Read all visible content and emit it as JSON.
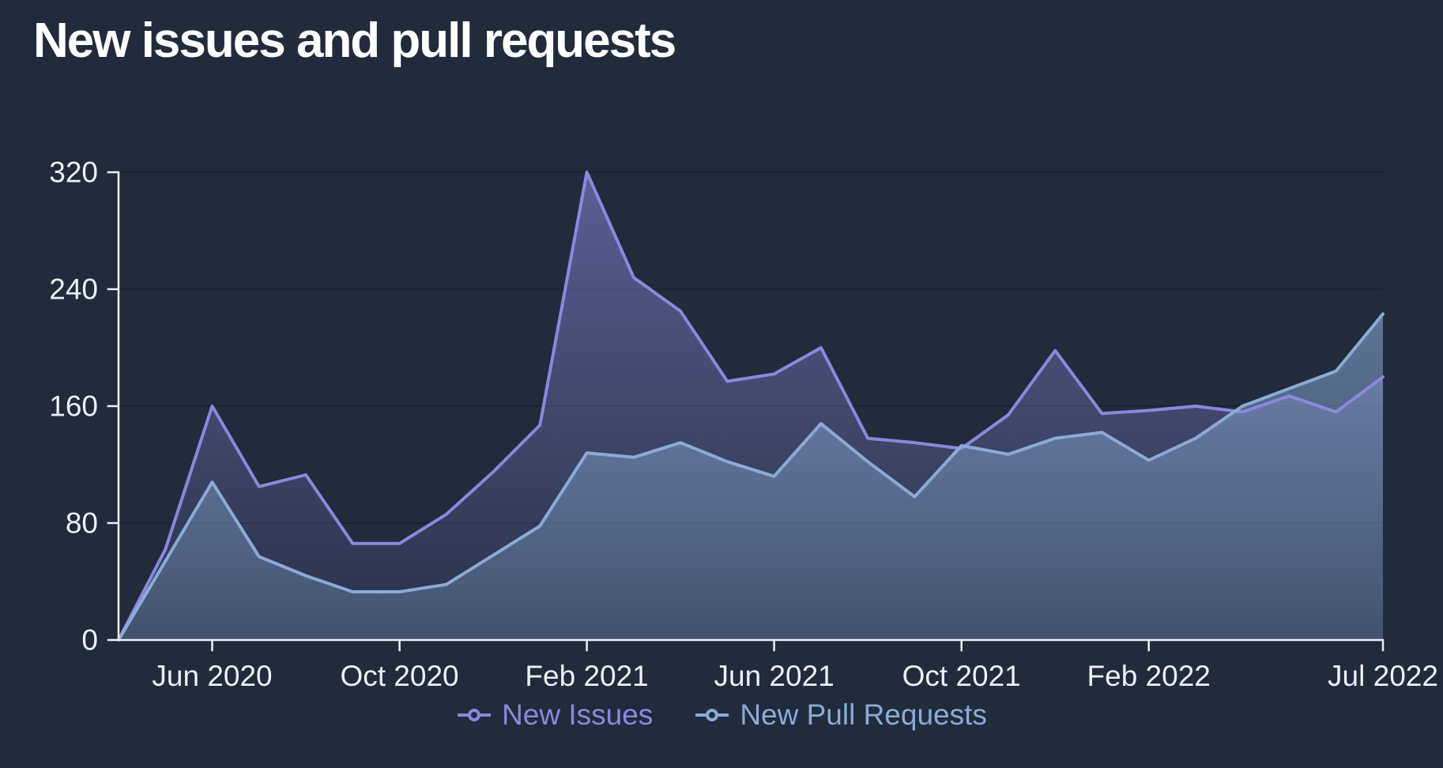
{
  "page": {
    "title": "New issues and pull requests",
    "background": "#212b3b"
  },
  "colors": {
    "background": "#212b3b",
    "axis": "#edf0f6",
    "tick_label": "#edf0f6",
    "gridline": "#1a2231",
    "new_issues": "#8c87dd",
    "new_pull_requests": "#8aabd8"
  },
  "legend": {
    "items": [
      {
        "label": "New Issues",
        "color": "#8c87dd",
        "marker": "line-circle-icon"
      },
      {
        "label": "New Pull Requests",
        "color": "#8aabd8",
        "marker": "line-circle-icon"
      }
    ]
  },
  "chart_data": {
    "type": "area",
    "title": "New issues and pull requests",
    "xlabel": "",
    "ylabel": "",
    "ylim": [
      0,
      320
    ],
    "y_ticks": [
      0,
      80,
      160,
      240,
      320
    ],
    "grid": "horizontal",
    "legend_position": "bottom",
    "categories": [
      "Apr 2020",
      "May 2020",
      "Jun 2020",
      "Jul 2020",
      "Aug 2020",
      "Sep 2020",
      "Oct 2020",
      "Nov 2020",
      "Dec 2020",
      "Jan 2021",
      "Feb 2021",
      "Mar 2021",
      "Apr 2021",
      "May 2021",
      "Jun 2021",
      "Jul 2021",
      "Aug 2021",
      "Sep 2021",
      "Oct 2021",
      "Nov 2021",
      "Dec 2021",
      "Jan 2022",
      "Feb 2022",
      "Mar 2022",
      "Apr 2022",
      "May 2022",
      "Jun 2022",
      "Jul 2022"
    ],
    "x_tick_labels": [
      "Jun 2020",
      "Oct 2020",
      "Feb 2021",
      "Jun 2021",
      "Oct 2021",
      "Feb 2022",
      "Jul 2022"
    ],
    "x_tick_indices": [
      2,
      6,
      10,
      14,
      18,
      22,
      27
    ],
    "series": [
      {
        "name": "New Issues",
        "color": "#8c87dd",
        "values": [
          0,
          62,
          160,
          105,
          113,
          66,
          66,
          86,
          115,
          147,
          320,
          248,
          225,
          177,
          182,
          200,
          138,
          135,
          131,
          154,
          198,
          155,
          157,
          160,
          156,
          167,
          156,
          180
        ]
      },
      {
        "name": "New Pull Requests",
        "color": "#8aabd8",
        "values": [
          0,
          54,
          108,
          57,
          44,
          33,
          33,
          38,
          58,
          78,
          128,
          125,
          135,
          122,
          112,
          148,
          122,
          98,
          133,
          127,
          138,
          142,
          123,
          138,
          160,
          172,
          184,
          223
        ]
      }
    ]
  }
}
